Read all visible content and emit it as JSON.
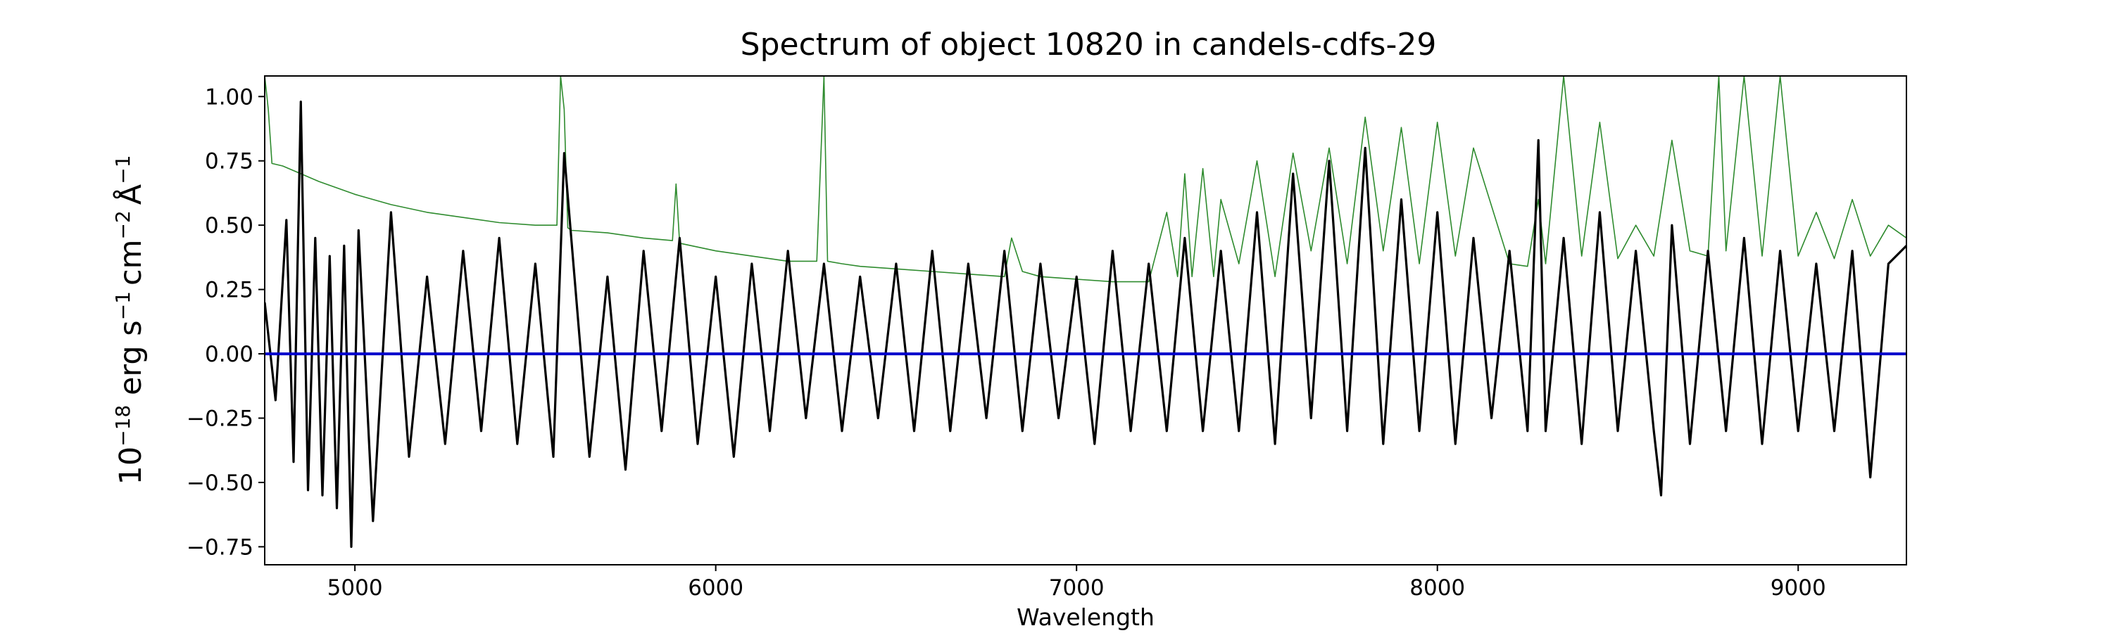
{
  "chart_data": {
    "type": "line",
    "title": "Spectrum of object 10820 in candels-cdfs-29",
    "xlabel": "Wavelength",
    "ylabel_base": "10",
    "ylabel_exp": "−18",
    "ylabel_unit1": " erg s",
    "ylabel_exp2": "−1",
    "ylabel_unit2": "cm",
    "ylabel_exp3": "−2",
    "ylabel_unit3": "Å",
    "ylabel_exp4": "−1",
    "xlim": [
      4750,
      9300
    ],
    "ylim": [
      -0.82,
      1.08
    ],
    "xticks": [
      5000,
      6000,
      7000,
      8000,
      9000
    ],
    "xtick_labels": [
      "5000",
      "6000",
      "7000",
      "8000",
      "9000"
    ],
    "yticks": [
      -0.75,
      -0.5,
      -0.25,
      0.0,
      0.25,
      0.5,
      0.75,
      1.0
    ],
    "ytick_labels": [
      "−0.75",
      "−0.50",
      "−0.25",
      "0.00",
      "0.25",
      "0.50",
      "0.75",
      "1.00"
    ],
    "grid": false,
    "colors": {
      "flux": "#000000",
      "error": "#2e8b2e",
      "model": "#0000cc"
    },
    "series": [
      {
        "key": "flux",
        "x": [
          4750,
          4780,
          4810,
          4830,
          4850,
          4870,
          4890,
          4910,
          4930,
          4950,
          4970,
          4990,
          5010,
          5050,
          5100,
          5150,
          5200,
          5250,
          5300,
          5350,
          5400,
          5450,
          5500,
          5550,
          5580,
          5650,
          5700,
          5750,
          5800,
          5850,
          5900,
          5950,
          6000,
          6050,
          6100,
          6150,
          6200,
          6250,
          6300,
          6350,
          6400,
          6450,
          6500,
          6550,
          6600,
          6650,
          6700,
          6750,
          6800,
          6850,
          6900,
          6950,
          7000,
          7050,
          7100,
          7150,
          7200,
          7250,
          7300,
          7350,
          7400,
          7450,
          7500,
          7550,
          7600,
          7650,
          7700,
          7750,
          7800,
          7850,
          7900,
          7950,
          8000,
          8050,
          8100,
          8150,
          8200,
          8250,
          8280,
          8300,
          8350,
          8400,
          8450,
          8500,
          8550,
          8600,
          8620,
          8650,
          8700,
          8750,
          8800,
          8850,
          8900,
          8950,
          9000,
          9050,
          9100,
          9150,
          9200,
          9250,
          9300
        ],
        "y": [
          0.2,
          -0.18,
          0.52,
          -0.42,
          0.98,
          -0.53,
          0.45,
          -0.55,
          0.38,
          -0.6,
          0.42,
          -0.75,
          0.48,
          -0.65,
          0.55,
          -0.4,
          0.3,
          -0.35,
          0.4,
          -0.3,
          0.45,
          -0.35,
          0.35,
          -0.4,
          0.78,
          -0.4,
          0.3,
          -0.45,
          0.4,
          -0.3,
          0.45,
          -0.35,
          0.3,
          -0.4,
          0.35,
          -0.3,
          0.4,
          -0.25,
          0.35,
          -0.3,
          0.3,
          -0.25,
          0.35,
          -0.3,
          0.4,
          -0.3,
          0.35,
          -0.25,
          0.4,
          -0.3,
          0.35,
          -0.25,
          0.3,
          -0.35,
          0.4,
          -0.3,
          0.35,
          -0.3,
          0.45,
          -0.3,
          0.4,
          -0.3,
          0.55,
          -0.35,
          0.7,
          -0.25,
          0.75,
          -0.3,
          0.8,
          -0.35,
          0.6,
          -0.3,
          0.55,
          -0.35,
          0.45,
          -0.25,
          0.4,
          -0.3,
          0.83,
          -0.3,
          0.45,
          -0.35,
          0.55,
          -0.3,
          0.4,
          -0.3,
          -0.55,
          0.5,
          -0.35,
          0.4,
          -0.3,
          0.45,
          -0.35,
          0.4,
          -0.3,
          0.35,
          -0.3,
          0.4,
          -0.48,
          0.35,
          0.42
        ]
      },
      {
        "key": "error",
        "x": [
          4750,
          4760,
          4770,
          4800,
          4850,
          4900,
          5000,
          5100,
          5200,
          5300,
          5400,
          5500,
          5560,
          5570,
          5580,
          5590,
          5600,
          5700,
          5800,
          5880,
          5890,
          5900,
          6000,
          6100,
          6200,
          6280,
          6300,
          6310,
          6350,
          6400,
          6500,
          6600,
          6700,
          6800,
          6820,
          6850,
          6900,
          7000,
          7100,
          7200,
          7250,
          7280,
          7300,
          7320,
          7350,
          7380,
          7400,
          7450,
          7500,
          7550,
          7600,
          7650,
          7700,
          7750,
          7800,
          7850,
          7900,
          7950,
          8000,
          8050,
          8100,
          8200,
          8250,
          8280,
          8300,
          8350,
          8400,
          8450,
          8500,
          8550,
          8600,
          8650,
          8700,
          8750,
          8780,
          8800,
          8850,
          8900,
          8950,
          9000,
          9050,
          9100,
          9150,
          9200,
          9250,
          9300
        ],
        "y": [
          1.08,
          0.95,
          0.74,
          0.73,
          0.7,
          0.67,
          0.62,
          0.58,
          0.55,
          0.53,
          0.51,
          0.5,
          0.5,
          1.08,
          0.95,
          0.49,
          0.48,
          0.47,
          0.45,
          0.44,
          0.66,
          0.43,
          0.4,
          0.38,
          0.36,
          0.36,
          1.08,
          0.36,
          0.35,
          0.34,
          0.33,
          0.32,
          0.31,
          0.3,
          0.45,
          0.32,
          0.3,
          0.29,
          0.28,
          0.28,
          0.55,
          0.3,
          0.7,
          0.3,
          0.72,
          0.3,
          0.6,
          0.35,
          0.75,
          0.3,
          0.78,
          0.4,
          0.8,
          0.35,
          0.92,
          0.4,
          0.88,
          0.35,
          0.9,
          0.38,
          0.8,
          0.35,
          0.34,
          0.6,
          0.35,
          1.08,
          0.38,
          0.9,
          0.37,
          0.5,
          0.38,
          0.83,
          0.4,
          0.38,
          1.08,
          0.4,
          1.08,
          0.38,
          1.08,
          0.38,
          0.55,
          0.37,
          0.6,
          0.38,
          0.5,
          0.45
        ]
      },
      {
        "key": "model",
        "x": [
          4750,
          9300
        ],
        "y": [
          0.0,
          0.0
        ]
      }
    ]
  }
}
